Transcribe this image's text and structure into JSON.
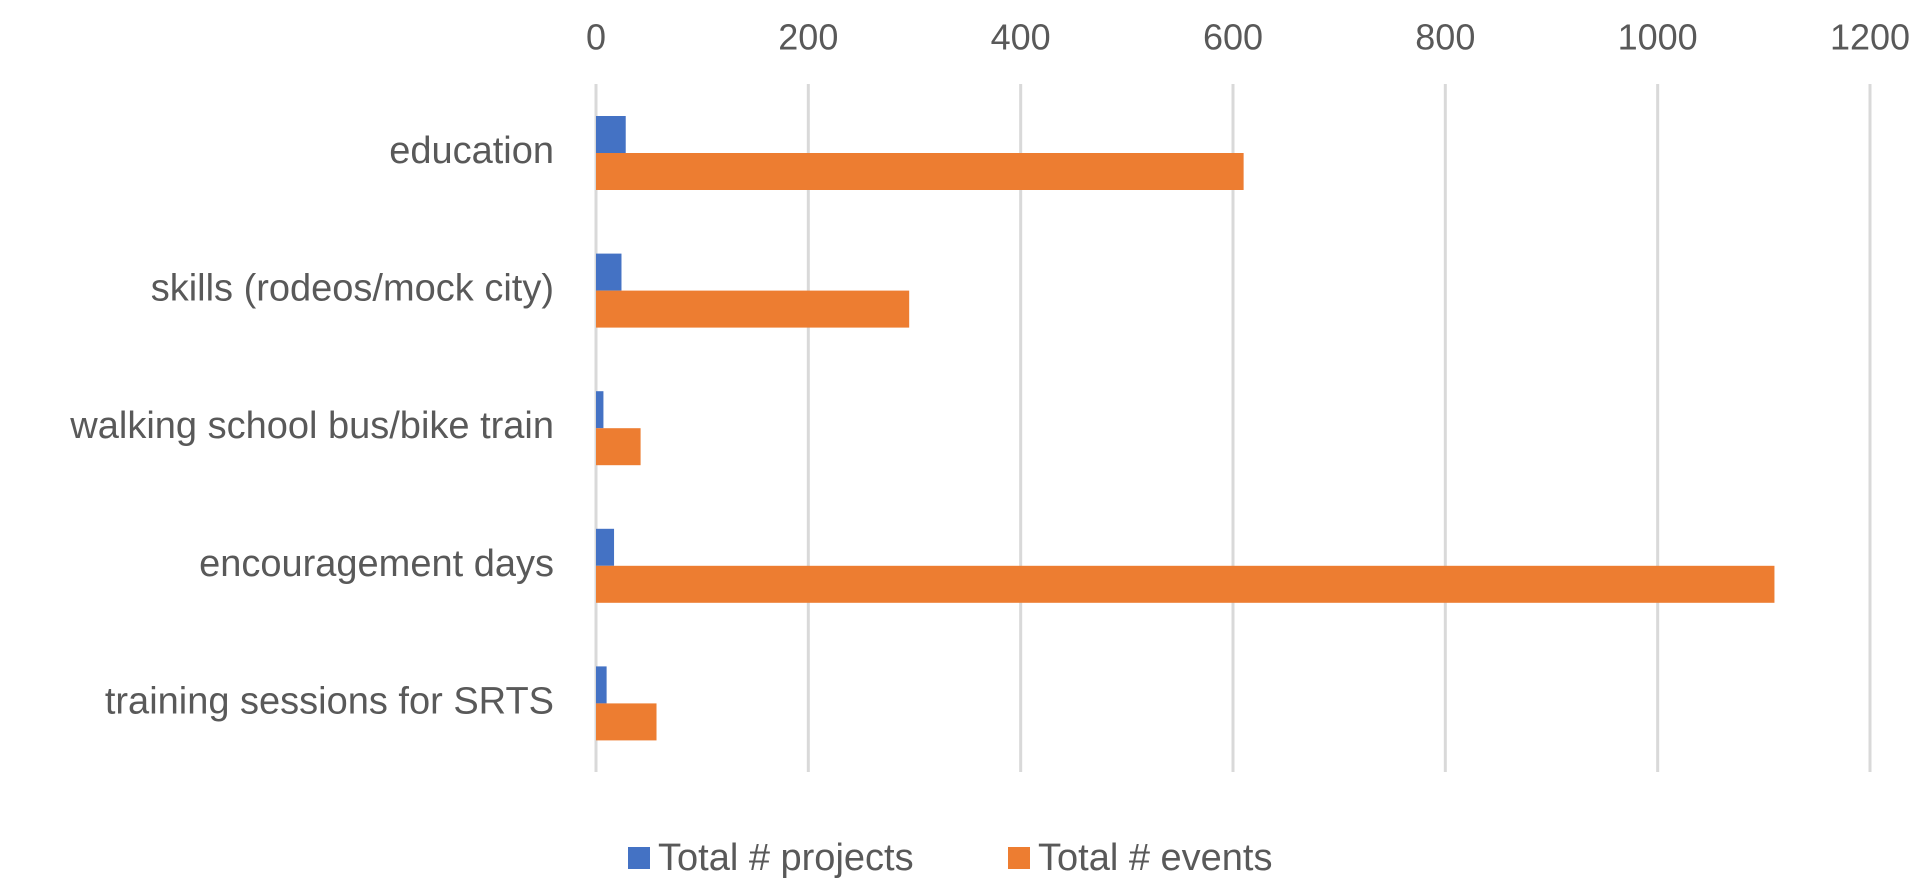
{
  "chart_data": {
    "type": "bar",
    "orientation": "horizontal",
    "title": "",
    "xlabel": "",
    "ylabel": "",
    "xlim": [
      0,
      1200
    ],
    "x_ticks": [
      0,
      200,
      400,
      600,
      800,
      1000,
      1200
    ],
    "x_axis_position": "top",
    "grid": true,
    "legend_position": "bottom",
    "categories": [
      "education",
      "skills (rodeos/mock city)",
      "walking school bus/bike train",
      "encouragement days",
      "training sessions for SRTS"
    ],
    "series": [
      {
        "name": "Total # projects",
        "color": "#4472C4",
        "values": [
          28,
          24,
          7,
          17,
          10
        ]
      },
      {
        "name": "Total # events",
        "color": "#ED7D31",
        "values": [
          610,
          295,
          42,
          1110,
          57
        ]
      }
    ],
    "gridline_color": "#d9d9d9",
    "text_color": "#595959"
  }
}
